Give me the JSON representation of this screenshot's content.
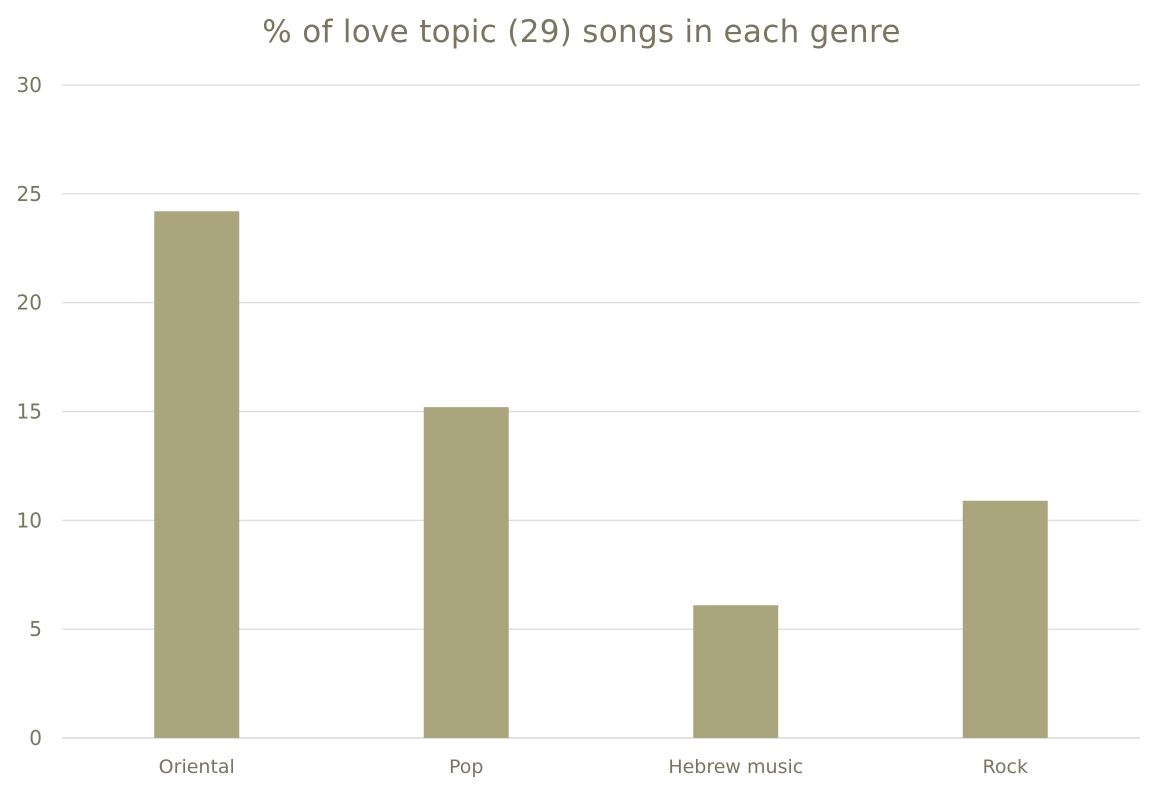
{
  "chart_data": {
    "type": "bar",
    "title": "% of love topic (29) songs in each genre",
    "categories": [
      "Oriental",
      "Pop",
      "Hebrew music",
      "Rock"
    ],
    "values": [
      24.2,
      15.2,
      6.1,
      10.9
    ],
    "ylim": [
      0,
      30
    ],
    "yticks": [
      0,
      5,
      10,
      15,
      20,
      25,
      30
    ],
    "grid": true,
    "bar_color": "#aaa57d",
    "grid_color": "#d9d9d9",
    "text_color": "#7a7560"
  }
}
